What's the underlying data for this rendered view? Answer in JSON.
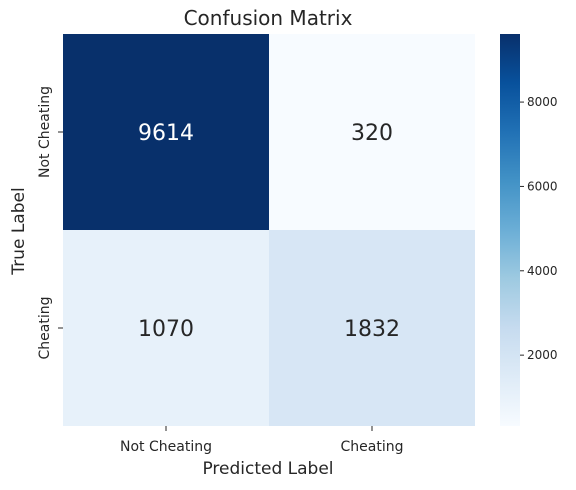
{
  "chart_data": {
    "type": "heatmap",
    "title": "Confusion Matrix",
    "xlabel": "Predicted Label",
    "ylabel": "True Label",
    "x_categories": [
      "Not Cheating",
      "Cheating"
    ],
    "y_categories": [
      "Not Cheating",
      "Cheating"
    ],
    "values": [
      [
        9614,
        320
      ],
      [
        1070,
        1832
      ]
    ],
    "colorbar": {
      "min": 320,
      "max": 9614,
      "ticks": [
        2000,
        4000,
        6000,
        8000
      ],
      "colormap": "Blues",
      "placement": "right"
    }
  }
}
